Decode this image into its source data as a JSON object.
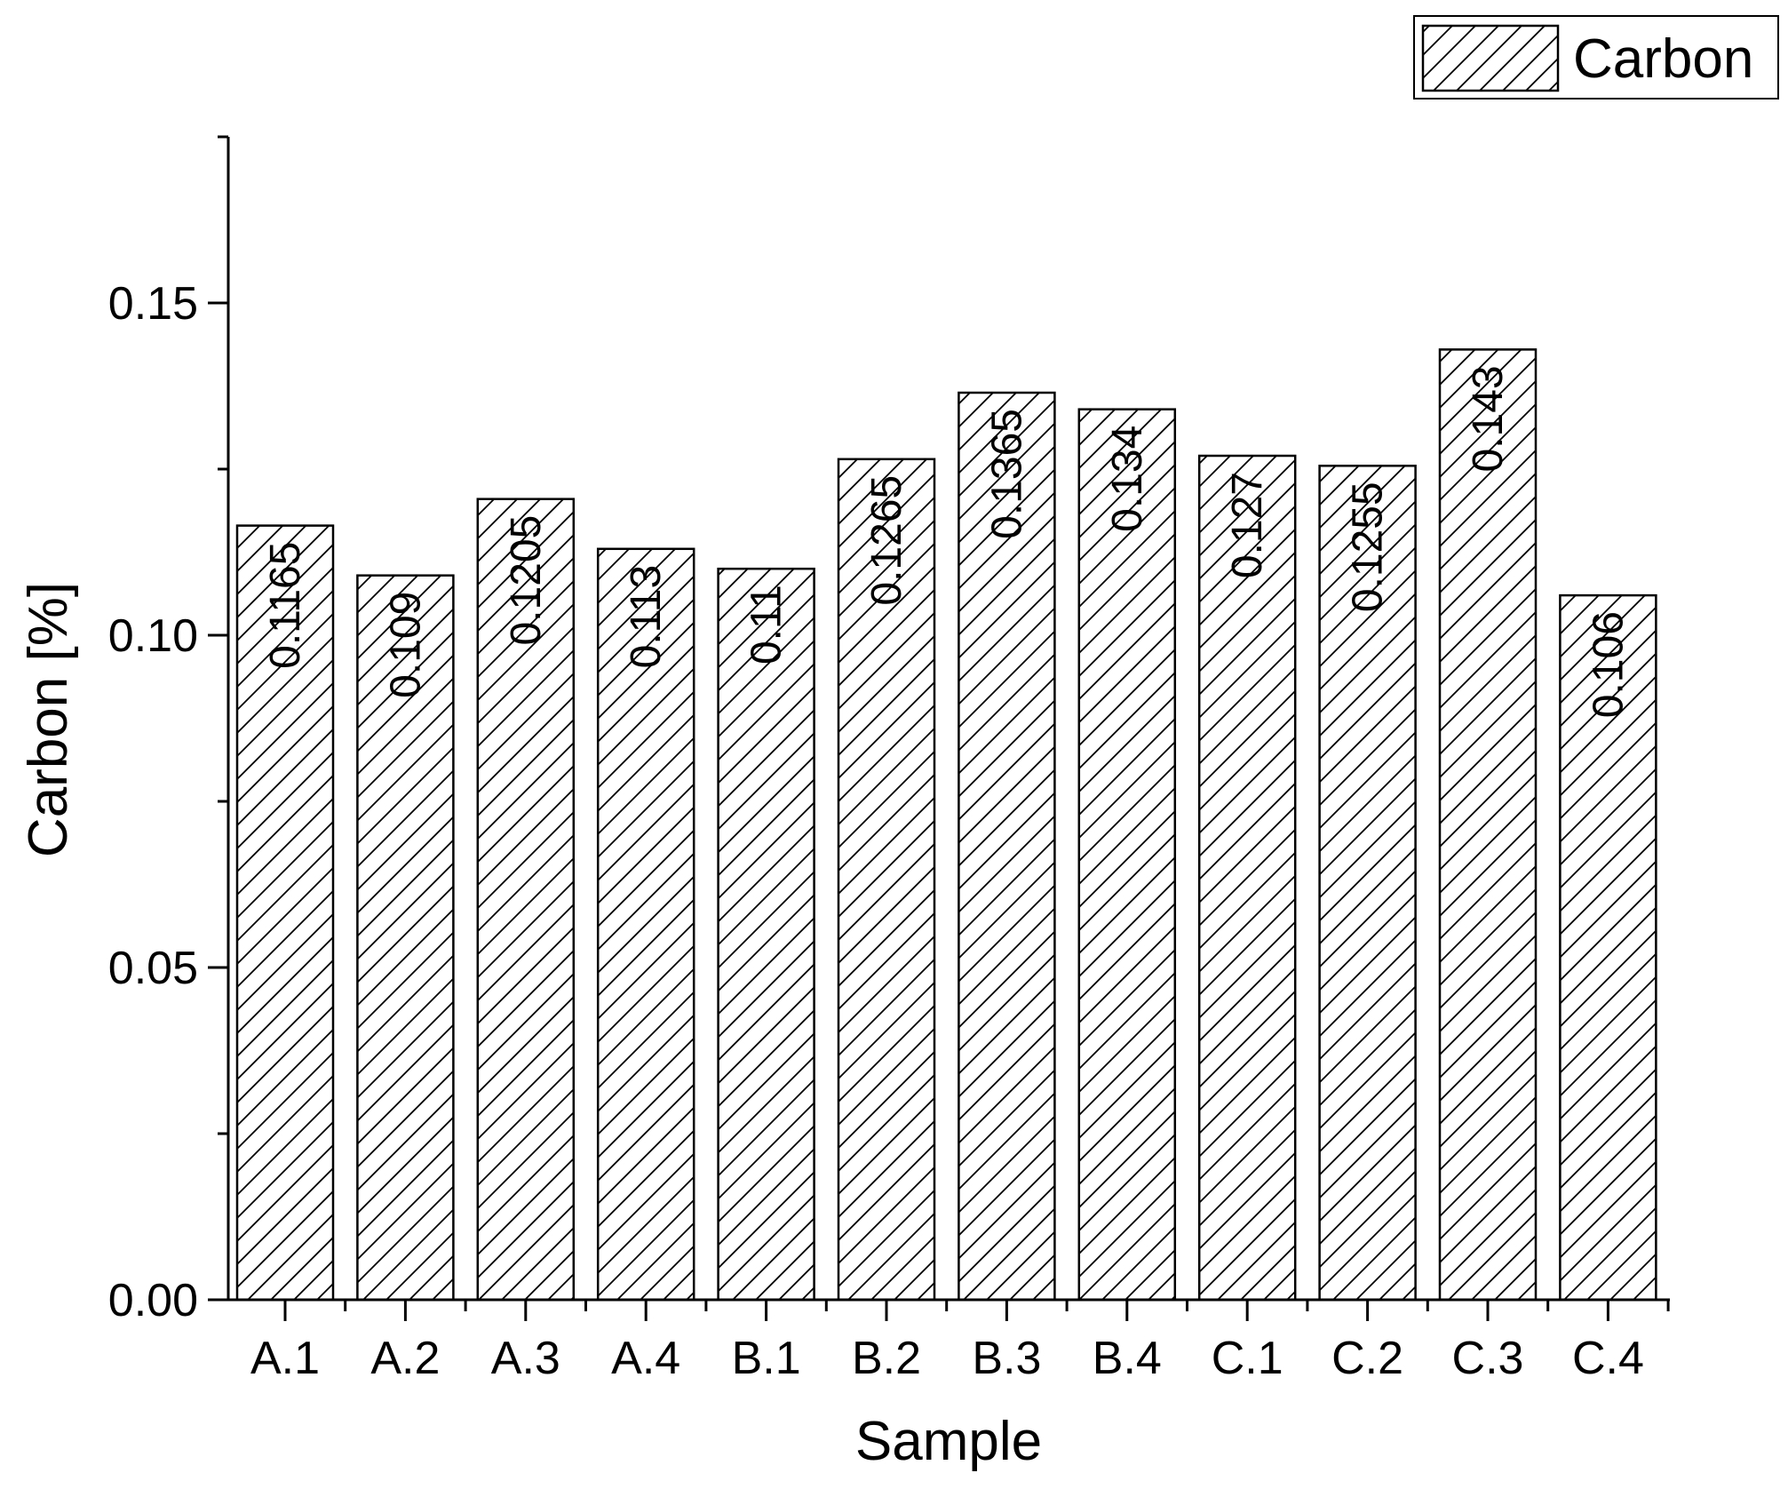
{
  "chart_data": {
    "type": "bar",
    "categories": [
      "A.1",
      "A.2",
      "A.3",
      "A.4",
      "B.1",
      "B.2",
      "B.3",
      "B.4",
      "C.1",
      "C.2",
      "C.3",
      "C.4"
    ],
    "series": [
      {
        "name": "Carbon",
        "values": [
          0.1165,
          0.109,
          0.1205,
          0.113,
          0.11,
          0.1265,
          0.1365,
          0.134,
          0.127,
          0.1255,
          0.143,
          0.106
        ],
        "data_labels": [
          "0.1165",
          "0.109",
          "0.1205",
          "0.113",
          "0.11",
          "0.1265",
          "0.1365",
          "0.134",
          "0.127",
          "0.1255",
          "0.143",
          "0.106"
        ],
        "fill": "hatched",
        "color": "#000000"
      }
    ],
    "title": "",
    "xlabel": "Sample",
    "ylabel": "Carbon [%]",
    "ylim": [
      0,
      0.175
    ],
    "yticks": [
      0.0,
      0.05,
      0.1,
      0.15
    ],
    "ytick_labels": [
      "0.00",
      "0.05",
      "0.10",
      "0.15"
    ],
    "grid": false,
    "legend_position": "top-right"
  }
}
